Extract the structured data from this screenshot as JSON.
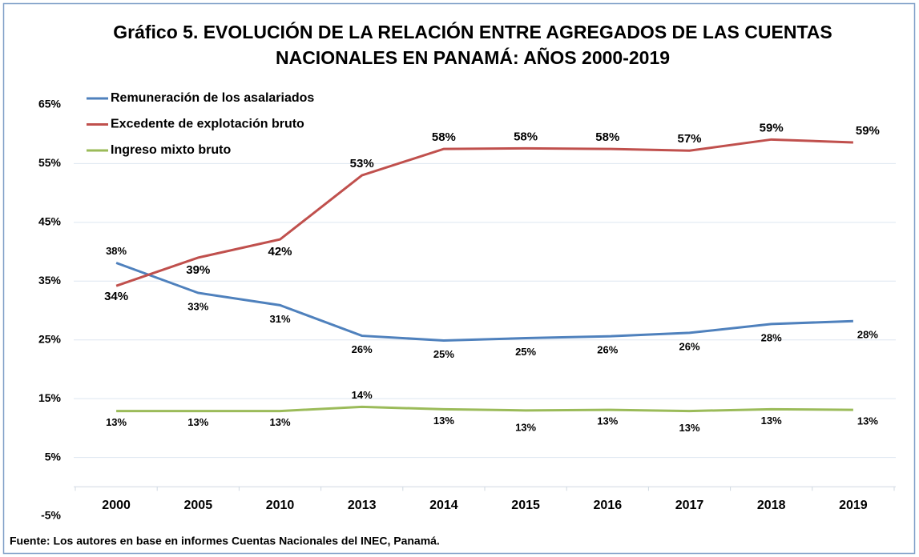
{
  "chart_data": {
    "type": "line",
    "title": "Gráfico 5. EVOLUCIÓN DE LA RELACIÓN ENTRE AGREGADOS DE LAS CUENTAS",
    "subtitle": "NACIONALES EN PANAMÁ: AÑOS 2000-2019",
    "categories": [
      "2000",
      "2005",
      "2010",
      "2013",
      "2014",
      "2015",
      "2016",
      "2017",
      "2018",
      "2019"
    ],
    "series": [
      {
        "name": "Remuneración de los asalariados",
        "color": "#4f81bd",
        "values": [
          38.1,
          33.0,
          30.9,
          25.7,
          24.9,
          25.3,
          25.6,
          26.2,
          27.7,
          28.2
        ],
        "value_labels": [
          "38%",
          "33%",
          "31%",
          "26%",
          "25%",
          "25%",
          "26%",
          "26%",
          "28%",
          "28%"
        ]
      },
      {
        "name": "Excedente de explotación bruto",
        "color": "#c0504d",
        "values": [
          34.2,
          39.0,
          42.1,
          53.0,
          57.5,
          57.6,
          57.5,
          57.2,
          59.1,
          58.6
        ],
        "value_labels": [
          "34%",
          "39%",
          "42%",
          "53%",
          "58%",
          "58%",
          "58%",
          "57%",
          "59%",
          "59%"
        ]
      },
      {
        "name": "Ingreso mixto bruto",
        "color": "#9bbb59",
        "values": [
          12.9,
          12.9,
          12.9,
          13.6,
          13.2,
          13.0,
          13.1,
          12.9,
          13.2,
          13.1
        ],
        "value_labels": [
          "13%",
          "13%",
          "13%",
          "14%",
          "13%",
          "13%",
          "13%",
          "13%",
          "13%",
          "13%"
        ]
      }
    ],
    "ylim": [
      -5,
      65
    ],
    "yticks": [
      {
        "value": -5,
        "label": "-5%"
      },
      {
        "value": 5,
        "label": "5%"
      },
      {
        "value": 15,
        "label": "15%"
      },
      {
        "value": 25,
        "label": "25%"
      },
      {
        "value": 35,
        "label": "35%"
      },
      {
        "value": 45,
        "label": "45%"
      },
      {
        "value": 55,
        "label": "55%"
      },
      {
        "value": 65,
        "label": "65%"
      }
    ],
    "grid": true,
    "legend": "upper left",
    "source": "Fuente: Los autores en base en informes Cuentas Nacionales del INEC, Panamá."
  }
}
